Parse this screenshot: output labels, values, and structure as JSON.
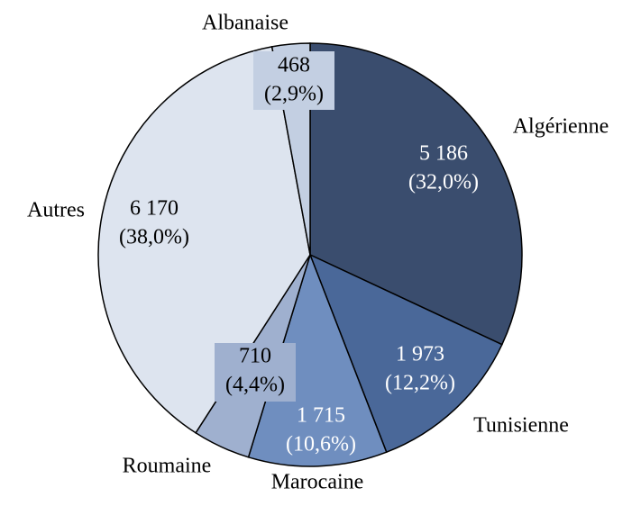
{
  "chart_data": {
    "type": "pie",
    "categories": [
      "Algérienne",
      "Tunisienne",
      "Marocaine",
      "Roumaine",
      "Autres",
      "Albanaise"
    ],
    "values": [
      5186,
      1973,
      1715,
      710,
      6170,
      468
    ],
    "value_labels": [
      "5 186",
      "1 973",
      "1 715",
      "710",
      "6 170",
      "468"
    ],
    "percents": [
      32.0,
      12.2,
      10.6,
      4.4,
      38.0,
      2.9
    ],
    "percent_labels": [
      "(32,0%)",
      "(12,2%)",
      "(10,6%)",
      "(4,4%)",
      "(38,0%)",
      "(2,9%)"
    ],
    "colors": [
      "#3a4d6e",
      "#4a6899",
      "#6f8ebf",
      "#9fb0cf",
      "#dde4ef",
      "#c3cfe2"
    ],
    "start_angle": "top",
    "direction": "clockwise"
  }
}
